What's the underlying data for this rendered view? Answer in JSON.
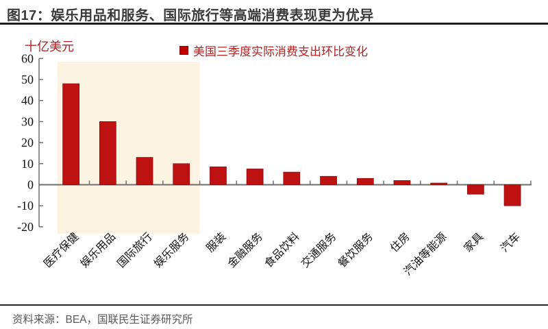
{
  "header": {
    "title": "图17：娱乐用品和服务、国际旅行等高端消费表现更为优异"
  },
  "chart_data": {
    "type": "bar",
    "title": "图17：娱乐用品和服务、国际旅行等高端消费表现更为优异",
    "ylabel": "十亿美元",
    "xlabel": "",
    "legend_entries": [
      "美国三季度实际消费支出环比变化"
    ],
    "legend_position": "top",
    "grid": false,
    "categories": [
      "医疗保健",
      "娱乐用品",
      "国际旅行",
      "娱乐服务",
      "服装",
      "金融服务",
      "食品饮料",
      "交通服务",
      "餐饮服务",
      "住房",
      "汽油等能源",
      "家具",
      "汽车"
    ],
    "values": [
      48,
      30,
      13,
      10,
      8.5,
      7.5,
      6,
      4,
      3,
      2,
      0.8,
      -4.5,
      -10
    ],
    "ylim": [
      -20,
      60
    ],
    "ytick_interval": 10,
    "yticks": [
      60,
      50,
      40,
      30,
      20,
      10,
      0,
      -10,
      -20
    ],
    "highlight_span": [
      0,
      3
    ],
    "colors": {
      "bar": "#be1111",
      "bar_edge": "#8f0a0a",
      "highlight": "#fdf3e2",
      "axis": "#6e6e6e",
      "tick_label": "#111111",
      "accent_text": "#b22222"
    }
  },
  "footer": {
    "source": "资料来源：BEA，国联民生证券研究所"
  }
}
